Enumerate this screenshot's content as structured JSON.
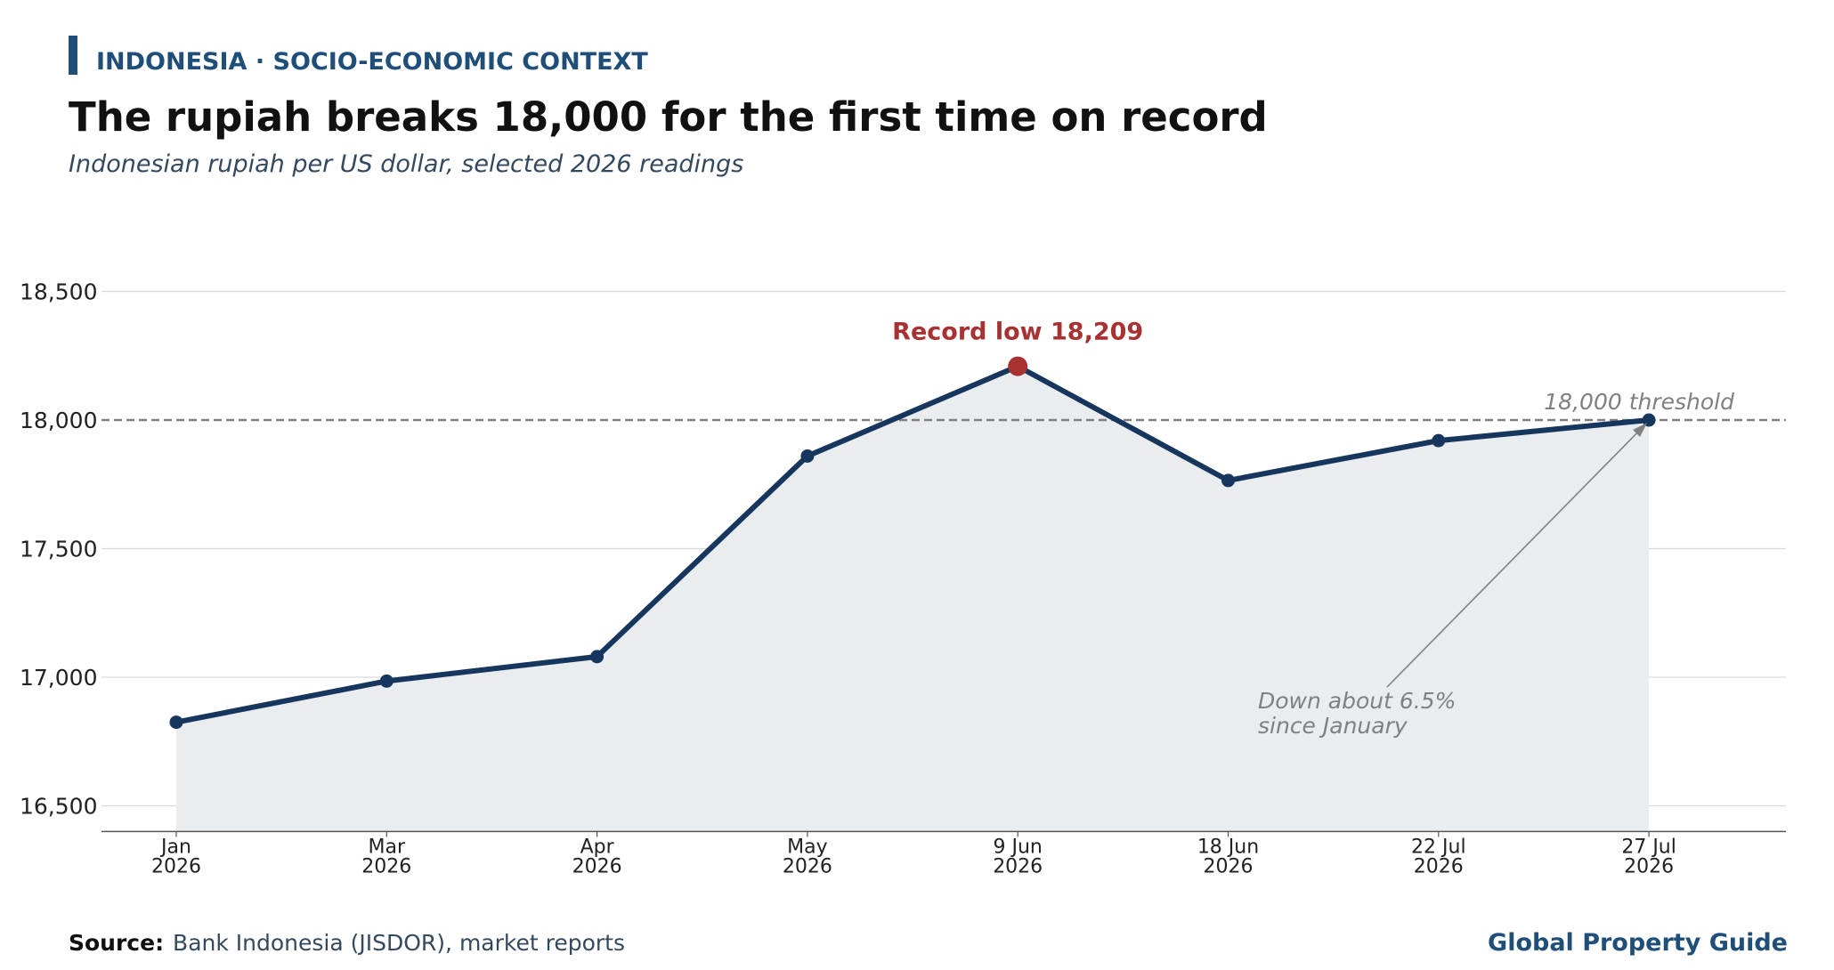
{
  "header": {
    "kicker": "INDONESIA · SOCIO-ECONOMIC CONTEXT",
    "title": "The rupiah breaks 18,000 for the first time on record",
    "subtitle": "Indonesian rupiah per US dollar, selected 2026 readings"
  },
  "footer": {
    "source_label": "Source:",
    "source_text": "Bank Indonesia (JISDOR), market reports",
    "brand": "Global Property Guide"
  },
  "colors": {
    "accent": "#1f4e79",
    "line": "#17365d",
    "fill": "#eaedf0",
    "record": "#a83232",
    "threshold": "#808080",
    "grid": "#d9d9d9",
    "annotation": "#808080",
    "subtitle": "#34495e",
    "title": "#111111"
  },
  "chart_data": {
    "type": "line",
    "title": "The rupiah breaks 18,000 for the first time on record",
    "subtitle": "Indonesian rupiah per US dollar, selected 2026 readings",
    "categories": [
      [
        "Jan",
        "2026"
      ],
      [
        "Mar",
        "2026"
      ],
      [
        "Apr",
        "2026"
      ],
      [
        "May",
        "2026"
      ],
      [
        "9 Jun",
        "2026"
      ],
      [
        "18 Jun",
        "2026"
      ],
      [
        "22 Jul",
        "2026"
      ],
      [
        "27 Jul",
        "2026"
      ]
    ],
    "series": [
      {
        "values": [
          16825,
          16985,
          17080,
          17860,
          18209,
          17765,
          17920,
          18000
        ]
      }
    ],
    "ylim": [
      16400,
      18800
    ],
    "yticks": [
      16500,
      17000,
      17500,
      18000,
      18500
    ],
    "ytick_labels": [
      "16,500",
      "17,000",
      "17,500",
      "18,000",
      "18,500"
    ],
    "grid": true,
    "threshold": {
      "value": 18000,
      "label": "18,000 threshold"
    },
    "highlight": {
      "index": 4,
      "label": "Record low 18,209"
    },
    "annotation": {
      "lines": [
        "Down about 6.5%",
        "since January"
      ],
      "target_index": 7
    }
  }
}
